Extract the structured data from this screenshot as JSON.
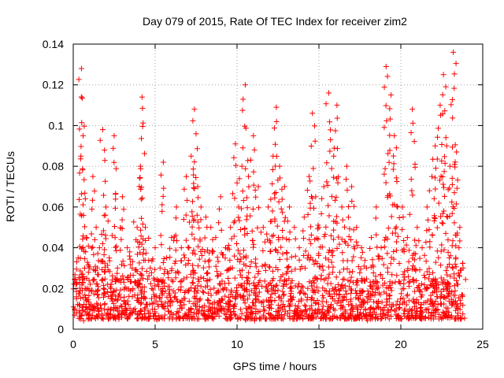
{
  "chart_data": {
    "type": "scatter",
    "title": "Day 079 of 2015, Rate Of TEC Index for receiver zim2",
    "xlabel": "GPS time / hours",
    "ylabel": "ROTI / TECUs",
    "xlim": [
      0,
      25
    ],
    "ylim": [
      0,
      0.14
    ],
    "grid": true,
    "marker": "+",
    "x_ticks": [
      "0",
      "5",
      "10",
      "15",
      "20",
      "25"
    ],
    "y_ticks": [
      "0",
      "0.02",
      "0.04",
      "0.06",
      "0.08",
      "0.1",
      "0.12",
      "0.14"
    ],
    "colors": {
      "series": "#ff0000",
      "grid": "#a0a0a0",
      "axis": "#000000"
    },
    "series": [
      {
        "name": "ROTI",
        "x": [
          0.1,
          0.3,
          0.5,
          0.6,
          0.8,
          1.0,
          1.2,
          1.4,
          1.6,
          1.8,
          2.0,
          2.2,
          2.5,
          2.7,
          3.0,
          3.3,
          3.6,
          3.9,
          4.1,
          4.2,
          4.4,
          4.7,
          5.0,
          5.3,
          5.5,
          5.7,
          6.0,
          6.3,
          6.6,
          6.9,
          7.2,
          7.4,
          7.6,
          7.8,
          8.1,
          8.4,
          8.7,
          9.0,
          9.3,
          9.6,
          9.9,
          10.1,
          10.3,
          10.5,
          10.7,
          11.0,
          11.3,
          11.6,
          11.9,
          12.2,
          12.4,
          12.6,
          12.9,
          13.2,
          13.5,
          13.8,
          14.1,
          14.4,
          14.6,
          14.8,
          15.0,
          15.3,
          15.6,
          15.9,
          16.1,
          16.4,
          16.7,
          17.0,
          17.3,
          17.6,
          17.9,
          18.2,
          18.5,
          18.8,
          19.1,
          19.4,
          19.6,
          19.8,
          20.1,
          20.4,
          20.7,
          21.0,
          21.3,
          21.6,
          21.9,
          22.1,
          22.4,
          22.6,
          22.8,
          23.0,
          23.2,
          23.4,
          23.6,
          23.8,
          0.2,
          0.9,
          1.5,
          2.3,
          3.1,
          4.3,
          5.4,
          6.8,
          7.5,
          8.9,
          10.4,
          11.5,
          12.7,
          14.7,
          15.8,
          17.5,
          19.3,
          20.5,
          22.2,
          23.1,
          0.4,
          2.8,
          6.1,
          9.5,
          13.7,
          18.9,
          22.9
        ],
        "y": [
          0.01,
          0.035,
          0.128,
          0.095,
          0.045,
          0.03,
          0.075,
          0.05,
          0.04,
          0.098,
          0.06,
          0.035,
          0.095,
          0.03,
          0.065,
          0.04,
          0.03,
          0.05,
          0.08,
          0.114,
          0.05,
          0.03,
          0.04,
          0.03,
          0.082,
          0.035,
          0.045,
          0.06,
          0.04,
          0.075,
          0.085,
          0.108,
          0.07,
          0.06,
          0.055,
          0.05,
          0.045,
          0.065,
          0.04,
          0.05,
          0.091,
          0.06,
          0.08,
          0.12,
          0.075,
          0.095,
          0.07,
          0.05,
          0.06,
          0.085,
          0.109,
          0.08,
          0.07,
          0.06,
          0.05,
          0.04,
          0.055,
          0.075,
          0.106,
          0.065,
          0.05,
          0.07,
          0.116,
          0.085,
          0.11,
          0.06,
          0.08,
          0.07,
          0.05,
          0.04,
          0.03,
          0.045,
          0.06,
          0.04,
          0.129,
          0.115,
          0.095,
          0.06,
          0.06,
          0.045,
          0.108,
          0.05,
          0.04,
          0.06,
          0.075,
          0.09,
          0.11,
          0.125,
          0.09,
          0.08,
          0.136,
          0.087,
          0.05,
          0.03,
          0.015,
          0.02,
          0.012,
          0.018,
          0.014,
          0.016,
          0.012,
          0.018,
          0.015,
          0.014,
          0.016,
          0.013,
          0.015,
          0.014,
          0.016,
          0.012,
          0.015,
          0.014,
          0.016,
          0.013,
          0.008,
          0.009,
          0.007,
          0.01,
          0.008,
          0.009,
          0.007
        ]
      }
    ],
    "background_band": {
      "min": 0.005,
      "max": 0.025,
      "count": 1400
    }
  }
}
